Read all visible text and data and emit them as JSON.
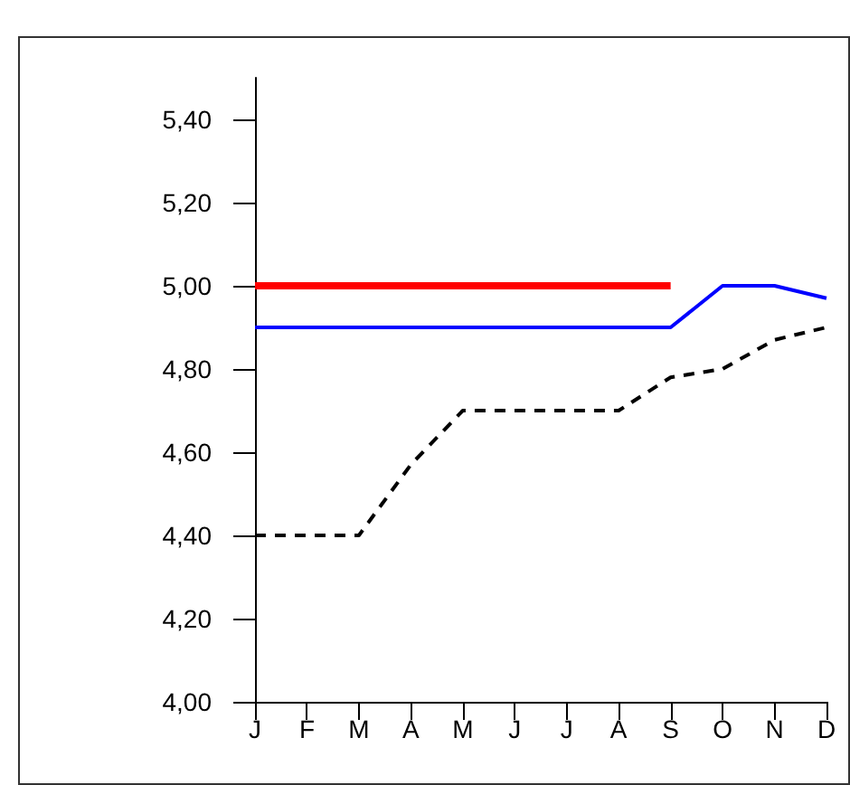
{
  "chart_data": {
    "type": "line",
    "categories": [
      "J",
      "F",
      "M",
      "A",
      "M",
      "J",
      "J",
      "A",
      "S",
      "O",
      "N",
      "D"
    ],
    "series": [
      {
        "color": "#ff0000",
        "values": [
          5.0,
          5.0,
          5.0,
          5.0,
          5.0,
          5.0,
          5.0,
          5.0,
          5.0,
          null,
          null,
          null
        ]
      },
      {
        "color": "#0000ff",
        "values": [
          4.9,
          4.9,
          4.9,
          4.9,
          4.9,
          4.9,
          4.9,
          4.9,
          4.9,
          5.0,
          5.0,
          4.97
        ]
      },
      {
        "color": "#000000",
        "line_style": "dashed",
        "values": [
          4.4,
          4.4,
          4.4,
          4.57,
          4.7,
          4.7,
          4.7,
          4.7,
          4.78,
          4.8,
          4.87,
          4.9
        ]
      }
    ],
    "ylim": [
      4.0,
      5.5
    ],
    "yticks": [
      {
        "value": 4.0,
        "label": "4,00"
      },
      {
        "value": 4.2,
        "label": "4,20"
      },
      {
        "value": 4.4,
        "label": "4,40"
      },
      {
        "value": 4.6,
        "label": "4,60"
      },
      {
        "value": 4.8,
        "label": "4,80"
      },
      {
        "value": 5.0,
        "label": "5,00"
      },
      {
        "value": 5.2,
        "label": "5,20"
      },
      {
        "value": 5.4,
        "label": "5,40"
      }
    ],
    "grid": false,
    "marker": "none",
    "line_style": "solid"
  }
}
